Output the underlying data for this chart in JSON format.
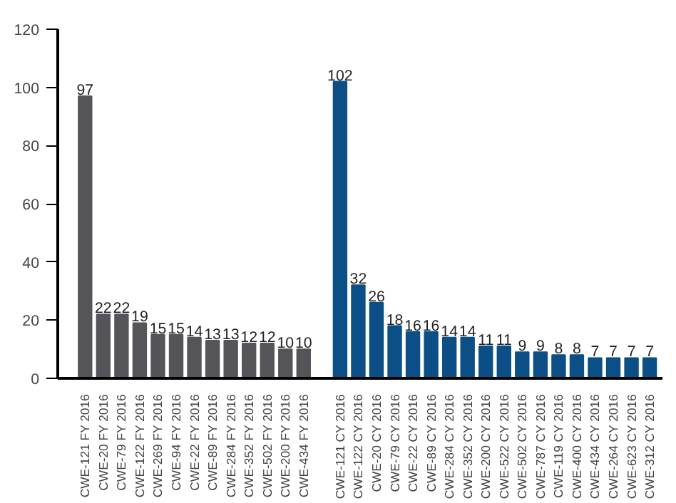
{
  "chart_data": {
    "type": "bar",
    "categories": [
      "CWE-121 FY 2016",
      "CWE-20 FY 2016",
      "CWE-79 FY 2016",
      "CWE-122 FY 2016",
      "CWE-269 FY 2016",
      "CWE-94 FY 2016",
      "CWE-22 FY 2016",
      "CWE-89 FY 2016",
      "CWE-284 FY 2016",
      "CWE-352 FY 2016",
      "CWE-502 FY 2016",
      "CWE-200 FY 2016",
      "CWE-434 FY 2016",
      null,
      "CWE-121 CY 2016",
      "CWE-122 CY 2016",
      "CWE-20 CY 2016",
      "CWE-79 CY 2016",
      "CWE-22 CY 2016",
      "CWE-89 CY 2016",
      "CWE-284 CY 2016",
      "CWE-352 CY 2016",
      "CWE-200 CY 2016",
      "CWE-522 CY 2016",
      "CWE-502 CY 2016",
      "CWE-787 CY 2016",
      "CWE-119 CY 2016",
      "CWE-400 CY 2016",
      "CWE-434 CY 2016",
      "CWE-264 CY 2016",
      "CWE-623 CY 2016",
      "CWE-312 CY 2016"
    ],
    "values": [
      97,
      22,
      22,
      19,
      15,
      15,
      14,
      13,
      13,
      12,
      12,
      10,
      10,
      null,
      102,
      32,
      26,
      18,
      16,
      16,
      14,
      14,
      11,
      11,
      9,
      9,
      8,
      8,
      7,
      7,
      7,
      7
    ],
    "colors": [
      "#555559",
      "#555559",
      "#555559",
      "#555559",
      "#555559",
      "#555559",
      "#555559",
      "#555559",
      "#555559",
      "#555559",
      "#555559",
      "#555559",
      "#555559",
      "#555559",
      "#0b4f86",
      "#0b4f86",
      "#0b4f86",
      "#0b4f86",
      "#0b4f86",
      "#0b4f86",
      "#0b4f86",
      "#0b4f86",
      "#0b4f86",
      "#0b4f86",
      "#0b4f86",
      "#0b4f86",
      "#0b4f86",
      "#0b4f86",
      "#0b4f86",
      "#0b4f86",
      "#0b4f86",
      "#0b4f86"
    ],
    "ylim": [
      0,
      120
    ],
    "yticks": [
      0,
      20,
      40,
      60,
      80,
      100,
      120
    ],
    "data_labels": true,
    "grid": false
  }
}
